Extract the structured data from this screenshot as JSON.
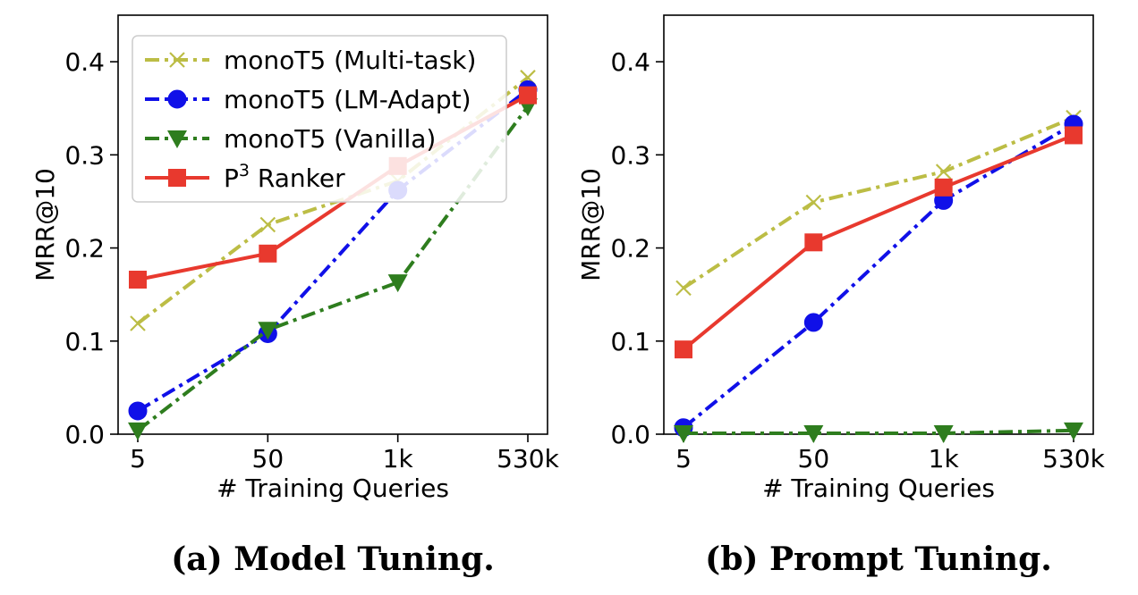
{
  "chart_data": [
    {
      "type": "line",
      "caption": "(a) Model Tuning.",
      "xlabel": "# Training Queries",
      "ylabel": "MRR@10",
      "categories": [
        "5",
        "50",
        "1k",
        "530k"
      ],
      "ylim": [
        0.0,
        0.45
      ],
      "yticks": [
        "0.0",
        "0.1",
        "0.2",
        "0.3",
        "0.4"
      ],
      "legend_position": "upper-left",
      "series": [
        {
          "name": "monoT5 (Multi-task)",
          "marker": "x",
          "style": "dashdot",
          "color": "#bcbd45",
          "values": [
            0.119,
            0.225,
            0.272,
            0.383
          ]
        },
        {
          "name": "monoT5 (LM-Adapt)",
          "marker": "circle",
          "style": "dashdot",
          "color": "#1010e8",
          "values": [
            0.025,
            0.108,
            0.262,
            0.37
          ]
        },
        {
          "name": "monoT5 (Vanilla)",
          "marker": "triangle-down",
          "style": "dashdot",
          "color": "#2e7d1e",
          "values": [
            0.004,
            0.112,
            0.163,
            0.352
          ]
        },
        {
          "name": "P³ Ranker",
          "name_base": "P",
          "name_sup": "3",
          "name_rest": " Ranker",
          "marker": "square",
          "style": "solid",
          "color": "#e8392e",
          "values": [
            0.166,
            0.194,
            0.288,
            0.364
          ]
        }
      ]
    },
    {
      "type": "line",
      "caption": "(b) Prompt Tuning.",
      "xlabel": "# Training Queries",
      "ylabel": "MRR@10",
      "categories": [
        "5",
        "50",
        "1k",
        "530k"
      ],
      "ylim": [
        0.0,
        0.45
      ],
      "yticks": [
        "0.0",
        "0.1",
        "0.2",
        "0.3",
        "0.4"
      ],
      "series": [
        {
          "name": "monoT5 (Multi-task)",
          "marker": "x",
          "style": "dashdot",
          "color": "#bcbd45",
          "values": [
            0.157,
            0.249,
            0.282,
            0.34
          ]
        },
        {
          "name": "monoT5 (LM-Adapt)",
          "marker": "circle",
          "style": "dashdot",
          "color": "#1010e8",
          "values": [
            0.007,
            0.12,
            0.251,
            0.333
          ]
        },
        {
          "name": "monoT5 (Vanilla)",
          "marker": "triangle-down",
          "style": "dashdot",
          "color": "#2e7d1e",
          "values": [
            0.001,
            0.001,
            0.001,
            0.004
          ]
        },
        {
          "name": "P³ Ranker",
          "marker": "square",
          "style": "solid",
          "color": "#e8392e",
          "values": [
            0.091,
            0.206,
            0.265,
            0.321
          ]
        }
      ]
    }
  ]
}
